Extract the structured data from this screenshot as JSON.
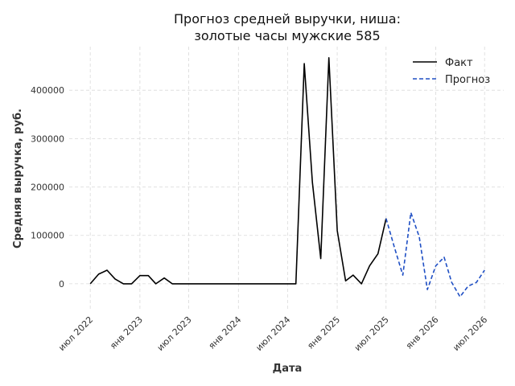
{
  "chart_data": {
    "type": "line",
    "title_lines": [
      "Прогноз средней выручки, ниша:",
      "золотые часы мужские 585"
    ],
    "xlabel": "Дата",
    "ylabel": "Средняя выручка, руб.",
    "xlim": [
      "2022-04-14",
      "2026-09-10"
    ],
    "ylim": [
      -55000,
      490000
    ],
    "y_ticks": [
      0,
      100000,
      200000,
      300000,
      400000
    ],
    "y_tick_labels": [
      "0",
      "100000",
      "200000",
      "300000",
      "400000"
    ],
    "x_ticks": [
      "2022-07-01",
      "2023-01-01",
      "2023-07-01",
      "2024-01-01",
      "2024-07-01",
      "2025-01-01",
      "2025-07-01",
      "2026-01-01",
      "2026-07-01"
    ],
    "x_tick_labels": [
      "июл 2022",
      "янв 2023",
      "июл 2023",
      "янв 2024",
      "июл 2024",
      "янв 2025",
      "июл 2025",
      "янв 2026",
      "июл 2026"
    ],
    "grid": true,
    "legend_position": "top-right",
    "series": [
      {
        "name": "Факт",
        "style": "solid",
        "color": "#000000",
        "x": [
          "2022-07-01",
          "2022-08-01",
          "2022-09-01",
          "2022-10-01",
          "2022-11-01",
          "2022-12-01",
          "2023-01-01",
          "2023-02-01",
          "2023-03-01",
          "2023-04-01",
          "2023-05-01",
          "2023-06-01",
          "2023-07-01",
          "2023-08-01",
          "2023-09-01",
          "2023-10-01",
          "2023-11-01",
          "2023-12-01",
          "2024-01-01",
          "2024-02-01",
          "2024-03-01",
          "2024-04-01",
          "2024-05-01",
          "2024-06-01",
          "2024-07-01",
          "2024-08-01",
          "2024-09-01",
          "2024-10-01",
          "2024-11-01",
          "2024-12-01",
          "2025-01-01",
          "2025-02-01",
          "2025-03-01",
          "2025-04-01",
          "2025-05-01",
          "2025-06-01",
          "2025-07-01"
        ],
        "values": [
          0,
          20000,
          28000,
          10000,
          0,
          0,
          17000,
          17000,
          0,
          12000,
          0,
          0,
          0,
          0,
          0,
          0,
          0,
          0,
          0,
          0,
          0,
          0,
          0,
          0,
          0,
          0,
          455000,
          210000,
          52000,
          467000,
          110000,
          6000,
          18000,
          0,
          37000,
          62000,
          135000
        ]
      },
      {
        "name": "Прогноз",
        "style": "dashed",
        "color": "#1f4fc4",
        "x": [
          "2025-07-01",
          "2025-08-01",
          "2025-09-01",
          "2025-10-01",
          "2025-11-01",
          "2025-12-01",
          "2026-01-01",
          "2026-02-01",
          "2026-03-01",
          "2026-04-01",
          "2026-05-01",
          "2026-06-01",
          "2026-07-01",
          "2026-08-01"
        ],
        "values": [
          135000,
          75000,
          18000,
          147000,
          97000,
          -12000,
          37000,
          55000,
          3000,
          -27000,
          -5000,
          3000,
          28000,
          null
        ]
      }
    ]
  }
}
